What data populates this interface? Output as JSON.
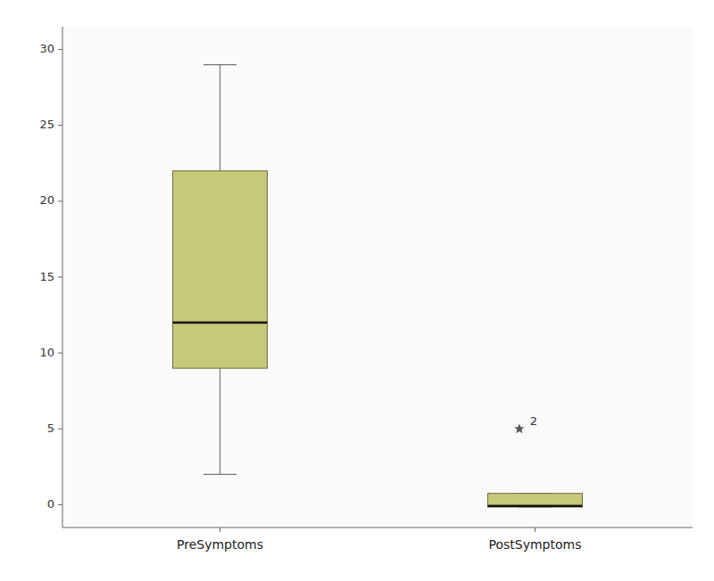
{
  "chart_data": {
    "type": "box",
    "categories": [
      "PreSymptoms",
      "PostSymptoms"
    ],
    "boxes": [
      {
        "whisker_low": 2.0,
        "q1": 9.0,
        "median": 12.0,
        "q3": 22.0,
        "whisker_high": 29.0,
        "outliers": [],
        "outlier_labels": []
      },
      {
        "whisker_low": -0.15,
        "q1": -0.15,
        "median": -0.08,
        "q3": 0.75,
        "whisker_high": 0.75,
        "outliers": [
          5.0
        ],
        "outlier_labels": [
          "2"
        ]
      }
    ],
    "color": "#c8c87a",
    "ylim": [
      -1.5,
      31.5
    ],
    "yticks": [
      0,
      5,
      10,
      15,
      20,
      25,
      30
    ],
    "grid": false
  }
}
